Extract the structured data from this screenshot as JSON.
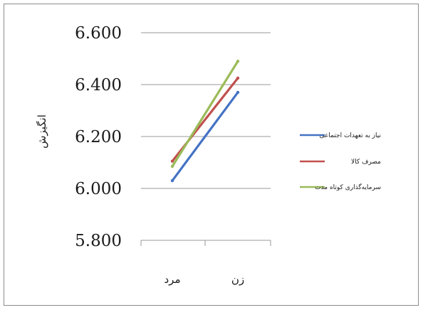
{
  "chart_data": {
    "type": "line",
    "ylabel": "انگیزش",
    "categories": [
      "مرد",
      "زن"
    ],
    "y_ticks": [
      "6.600",
      "6.400",
      "6.200",
      "6.000",
      "5.800"
    ],
    "ylim": [
      5.8,
      6.6
    ],
    "grid": true,
    "legend_position": "right",
    "series": [
      {
        "name": "نیاز به تعهدات اجتماعی",
        "color": "#4472c4",
        "values": [
          6.03,
          6.37
        ]
      },
      {
        "name": "مصرف کالا",
        "color": "#c0504d",
        "values": [
          6.105,
          6.425
        ]
      },
      {
        "name": "سرمایه‌گذاری کوتاه مدت",
        "color": "#9bbb59",
        "values": [
          6.085,
          6.49
        ]
      }
    ]
  }
}
